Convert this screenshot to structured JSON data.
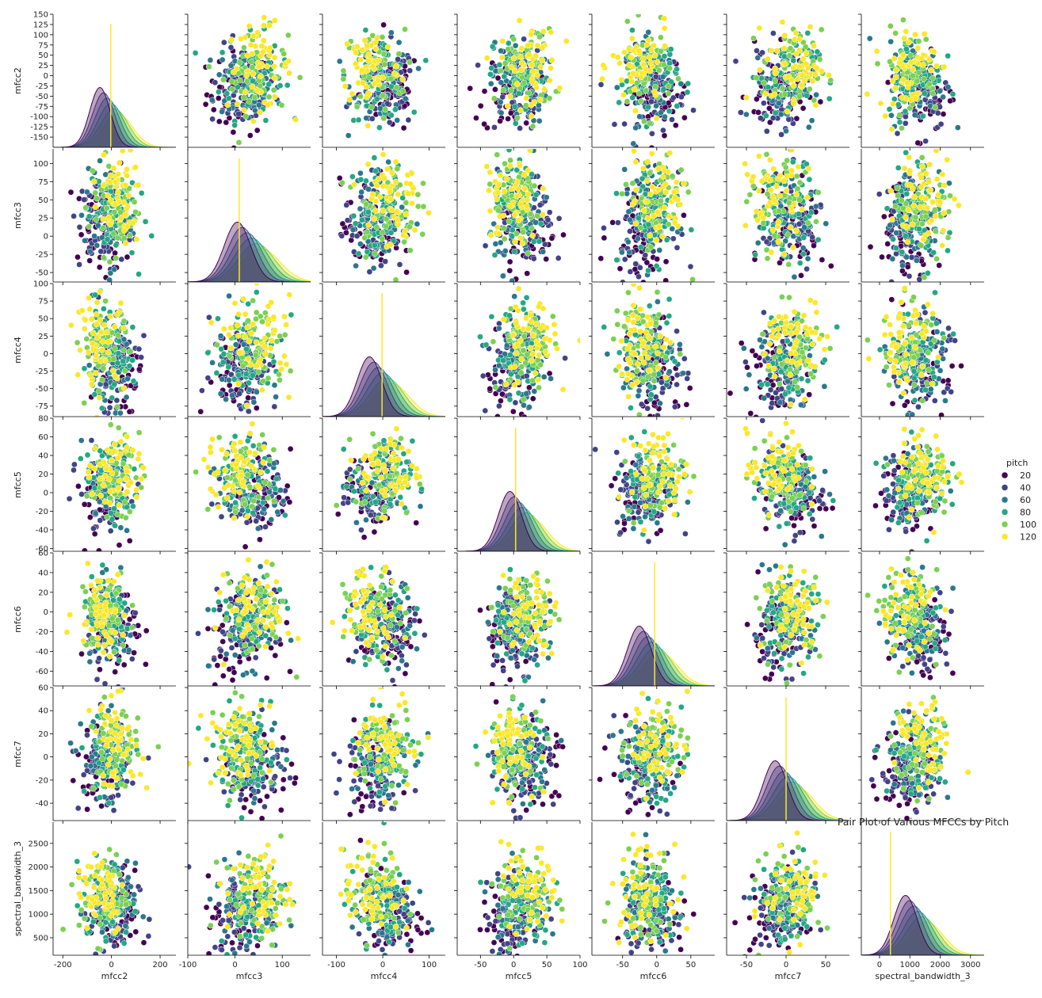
{
  "chart_data": {
    "type": "scatter",
    "title": "Pair Plot of Various MFCCs by Pitch",
    "variables": [
      "mfcc2",
      "mfcc3",
      "mfcc4",
      "mfcc5",
      "mfcc6",
      "mfcc7",
      "spectral_bandwidth_3"
    ],
    "ylims": [
      [
        -175,
        150
      ],
      [
        -63,
        120
      ],
      [
        -90,
        100
      ],
      [
        -63,
        80
      ],
      [
        -75,
        60
      ],
      [
        -55,
        60
      ],
      [
        130,
        2950
      ]
    ],
    "xlims": [
      [
        -240,
        265
      ],
      [
        -100,
        160
      ],
      [
        -130,
        135
      ],
      [
        -85,
        100
      ],
      [
        -95,
        85
      ],
      [
        -75,
        80
      ],
      [
        -600,
        3450
      ]
    ],
    "yticks": [
      [
        -150,
        -125,
        -100,
        -75,
        -50,
        -25,
        0,
        25,
        50,
        75,
        100,
        125,
        150
      ],
      [
        -50,
        -25,
        0,
        25,
        50,
        75,
        100
      ],
      [
        -75,
        -50,
        -25,
        0,
        25,
        50,
        75,
        100
      ],
      [
        -60,
        -40,
        -20,
        0,
        20,
        40,
        60,
        80
      ],
      [
        -60,
        -40,
        -20,
        0,
        20,
        40,
        60
      ],
      [
        -40,
        -20,
        0,
        20,
        40,
        60
      ],
      [
        500,
        1000,
        1500,
        2000,
        2500
      ]
    ],
    "xticks": [
      [
        -200,
        0,
        200
      ],
      [
        -100,
        0,
        100
      ],
      [
        -100,
        0,
        100
      ],
      [
        -50,
        0,
        50,
        100
      ],
      [
        -50,
        0,
        50
      ],
      [
        -50,
        0,
        50
      ],
      [
        0,
        1000,
        2000,
        3000
      ]
    ],
    "centers": [
      -10,
      30,
      -5,
      10,
      -10,
      0,
      1200
    ],
    "spreads": [
      60,
      40,
      38,
      25,
      25,
      22,
      550
    ],
    "legend": {
      "title": "pitch",
      "placement": "right",
      "entries": [
        {
          "label": "20",
          "color": "#440154"
        },
        {
          "label": "40",
          "color": "#414487"
        },
        {
          "label": "60",
          "color": "#2a788e"
        },
        {
          "label": "80",
          "color": "#22a884"
        },
        {
          "label": "100",
          "color": "#7ad151"
        },
        {
          "label": "120",
          "color": "#fde725"
        }
      ]
    },
    "hue": "pitch",
    "palette": "viridis",
    "diagonal": "kde",
    "off_diagonal": "scatter",
    "grid": false
  }
}
